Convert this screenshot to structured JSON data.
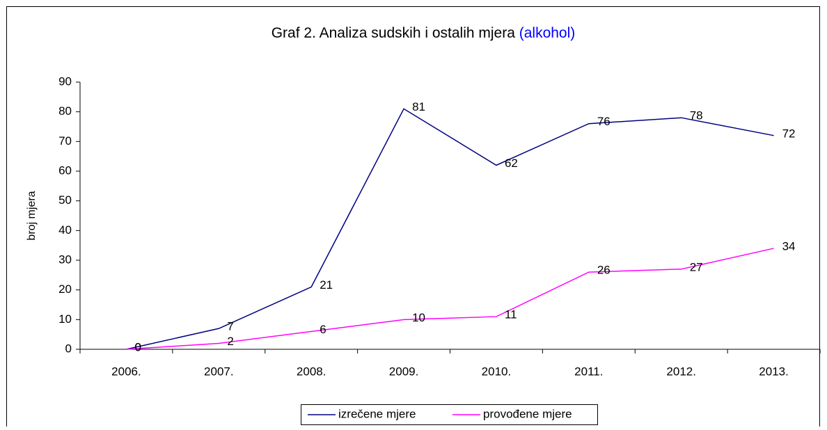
{
  "chart_data": {
    "type": "line",
    "title": "Graf 2. Analiza sudskih i ostalih mjera",
    "title_note": "(alkohol)",
    "y_label": "broj mjera",
    "categories": [
      "2006.",
      "2007.",
      "2008.",
      "2009.",
      "2010.",
      "2011.",
      "2012.",
      "2013."
    ],
    "series": [
      {
        "name": "izrečene mjere",
        "color": "#000080",
        "values": [
          0,
          7,
          21,
          81,
          62,
          76,
          78,
          72
        ]
      },
      {
        "name": "provođene mjere",
        "color": "#ff00ff",
        "values": [
          0,
          2,
          6,
          10,
          11,
          26,
          27,
          34
        ]
      }
    ],
    "ylim": [
      0,
      90
    ],
    "yticks": [
      0,
      10,
      20,
      30,
      40,
      50,
      60,
      70,
      80,
      90
    ],
    "grid": false,
    "legend": "bottom"
  }
}
